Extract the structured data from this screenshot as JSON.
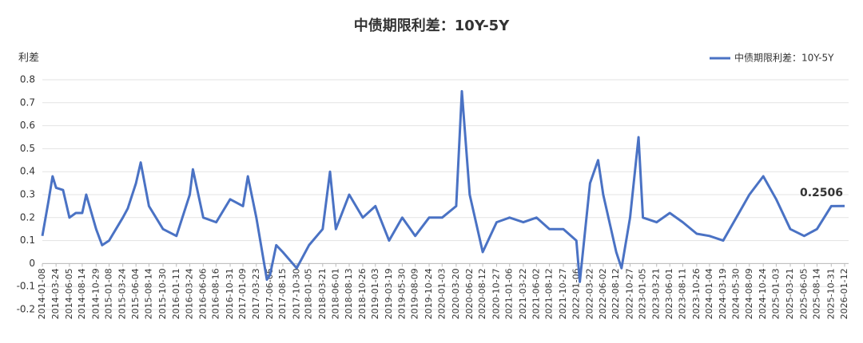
{
  "chart_data": {
    "type": "line",
    "title": "中债期限利差：10Y-5Y",
    "y_label": "利差",
    "x": [
      "2014-01-08",
      "2014-02-10",
      "2014-03-05",
      "2014-03-24",
      "2014-05-01",
      "2014-06-05",
      "2014-07-10",
      "2014-08-14",
      "2014-09-05",
      "2014-10-29",
      "2014-12-01",
      "2015-01-08",
      "2015-03-24",
      "2015-04-20",
      "2015-06-04",
      "2015-06-30",
      "2015-08-14",
      "2015-10-30",
      "2016-01-11",
      "2016-03-24",
      "2016-04-10",
      "2016-06-06",
      "2016-08-16",
      "2016-10-31",
      "2017-01-09",
      "2017-02-05",
      "2017-03-23",
      "2017-05-20",
      "2017-06-06",
      "2017-07-10",
      "2017-08-15",
      "2017-10-30",
      "2018-01-05",
      "2018-03-21",
      "2018-04-30",
      "2018-06-01",
      "2018-08-13",
      "2018-10-26",
      "2019-01-03",
      "2019-03-19",
      "2019-05-30",
      "2019-08-09",
      "2019-10-24",
      "2020-01-03",
      "2020-03-20",
      "2020-04-20",
      "2020-06-02",
      "2020-08-12",
      "2020-10-27",
      "2021-01-06",
      "2021-03-22",
      "2021-06-02",
      "2021-08-12",
      "2021-10-27",
      "2022-01-06",
      "2022-01-25",
      "2022-03-22",
      "2022-05-05",
      "2022-06-02",
      "2022-08-12",
      "2022-09-10",
      "2022-10-27",
      "2022-12-12",
      "2023-01-05",
      "2023-03-21",
      "2023-06-01",
      "2023-08-11",
      "2023-10-26",
      "2024-01-04",
      "2024-03-19",
      "2024-05-30",
      "2024-08-09",
      "2024-10-24",
      "2025-01-03",
      "2025-03-21",
      "2025-06-05",
      "2025-08-14",
      "2025-10-31",
      "2026-01-12"
    ],
    "series": [
      {
        "name": "中债期限利差：10Y-5Y",
        "color": "#4a72c4",
        "values": [
          0.12,
          0.27,
          0.38,
          0.33,
          0.32,
          0.2,
          0.22,
          0.22,
          0.3,
          0.15,
          0.08,
          0.1,
          0.2,
          0.24,
          0.35,
          0.44,
          0.25,
          0.15,
          0.12,
          0.3,
          0.41,
          0.2,
          0.18,
          0.28,
          0.25,
          0.38,
          0.2,
          -0.07,
          -0.05,
          0.08,
          0.05,
          -0.02,
          0.08,
          0.15,
          0.4,
          0.15,
          0.3,
          0.2,
          0.25,
          0.1,
          0.2,
          0.12,
          0.2,
          0.2,
          0.25,
          0.75,
          0.3,
          0.05,
          0.18,
          0.2,
          0.18,
          0.2,
          0.15,
          0.15,
          0.1,
          -0.08,
          0.35,
          0.45,
          0.3,
          0.05,
          -0.02,
          0.2,
          0.55,
          0.2,
          0.18,
          0.22,
          0.18,
          0.13,
          0.12,
          0.1,
          0.2,
          0.3,
          0.38,
          0.28,
          0.15,
          0.12,
          0.15,
          0.25,
          0.2506
        ]
      }
    ],
    "xlim": [
      "2014-01-08",
      "2026-01-12"
    ],
    "xticks": [
      "2014-01-08",
      "2014-03-24",
      "2014-06-05",
      "2014-08-14",
      "2014-10-29",
      "2015-01-08",
      "2015-03-24",
      "2015-06-04",
      "2015-08-14",
      "2015-10-30",
      "2016-01-11",
      "2016-03-24",
      "2016-06-06",
      "2016-08-16",
      "2016-10-31",
      "2017-01-09",
      "2017-03-23",
      "2017-06-06",
      "2017-08-15",
      "2017-10-30",
      "2018-01-05",
      "2018-03-21",
      "2018-06-01",
      "2018-08-13",
      "2018-10-26",
      "2019-01-03",
      "2019-03-19",
      "2019-05-30",
      "2019-08-09",
      "2019-10-24",
      "2020-01-03",
      "2020-03-20",
      "2020-06-02",
      "2020-08-12",
      "2020-10-27",
      "2021-01-06",
      "2021-03-22",
      "2021-06-02",
      "2021-08-12",
      "2021-10-27",
      "2022-01-06",
      "2022-03-22",
      "2022-06-02",
      "2022-08-12",
      "2022-10-27",
      "2023-01-05",
      "2023-03-21",
      "2023-06-01",
      "2023-08-11",
      "2023-10-26",
      "2024-01-04",
      "2024-03-19",
      "2024-05-30",
      "2024-08-09",
      "2024-10-24",
      "2025-01-03",
      "2025-03-21",
      "2025-06-05",
      "2025-08-14",
      "2025-10-31",
      "2026-01-12"
    ],
    "ylim": [
      -0.2,
      0.8
    ],
    "yticks": [
      -0.2,
      -0.1,
      0,
      0.1,
      0.2,
      0.3,
      0.4,
      0.5,
      0.6,
      0.7,
      0.8
    ],
    "grid": true,
    "legend": "top-right"
  }
}
